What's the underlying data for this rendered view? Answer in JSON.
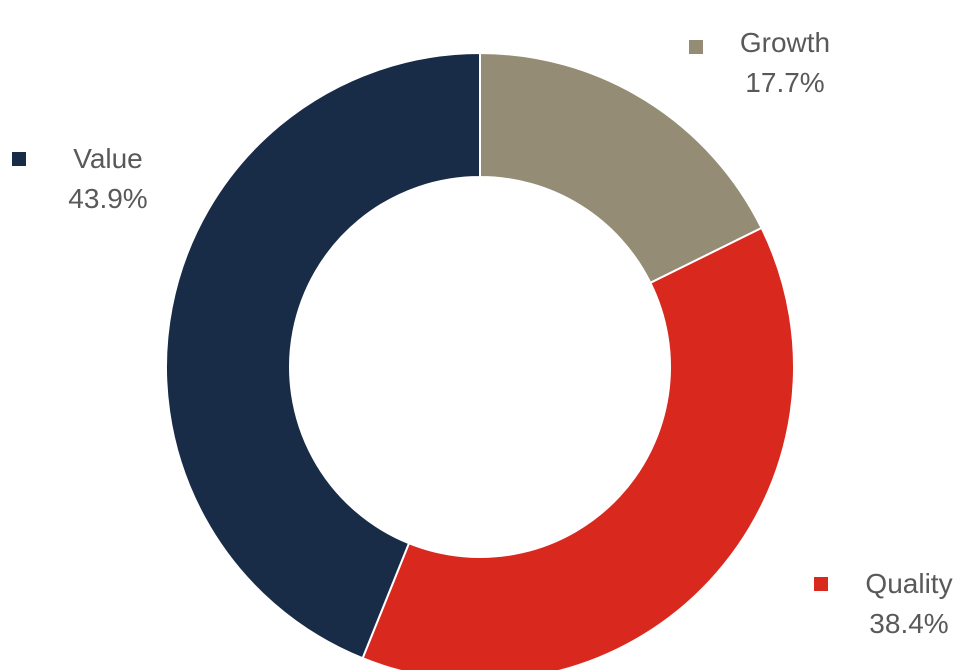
{
  "chart_data": {
    "type": "pie",
    "subtype": "donut",
    "categories": [
      "Growth",
      "Quality",
      "Value"
    ],
    "values": [
      17.7,
      38.4,
      43.9
    ],
    "value_labels": [
      "17.7%",
      "38.4%",
      "43.9%"
    ],
    "colors": [
      "#958C76",
      "#D9291F",
      "#182B47"
    ],
    "start_angle_deg": 0,
    "direction": "clockwise",
    "legend": "inline labels beside slices"
  }
}
